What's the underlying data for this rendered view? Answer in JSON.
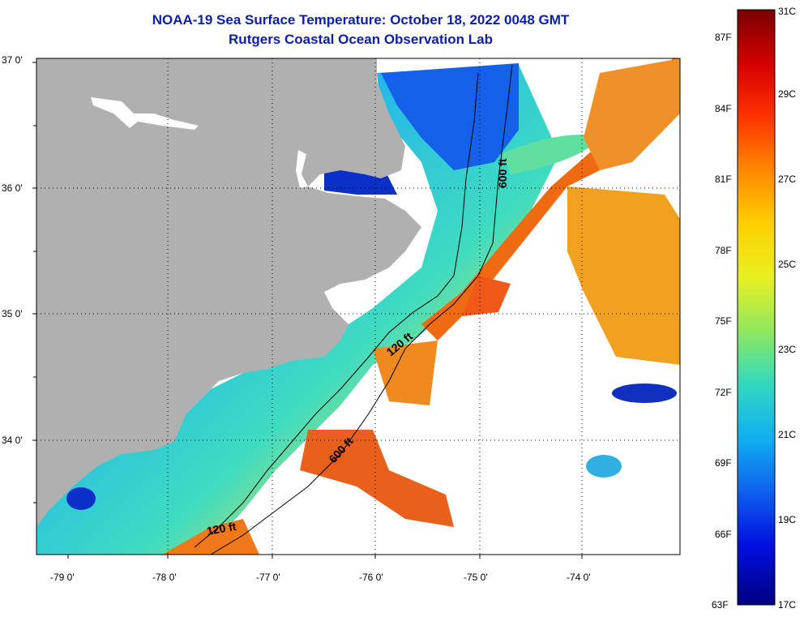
{
  "title": {
    "line1": "NOAA-19 Sea Surface Temperature:  October 18, 2022 0048 GMT",
    "line2": "Rutgers Coastal Ocean Observation Lab"
  },
  "map": {
    "lat_labels": [
      "37 0'",
      "36 0'",
      "35 0'",
      "34 0'"
    ],
    "lon_labels": [
      "-79 0'",
      "-78 0'",
      "-77 0'",
      "-76 0'",
      "-75 0'",
      "-74 0'"
    ],
    "contour_labels": [
      "600 ft",
      "120 ft",
      "600 ft",
      "120 ft"
    ],
    "colors": {
      "land": "#b0b0b0",
      "cloud": "#ffffff",
      "cold": "#0a2bd6",
      "cool": "#1fa3e8",
      "mid": "#39d9c6",
      "warm": "#e8e03a",
      "hot": "#f07a1a"
    }
  },
  "colorbar": {
    "fahrenheit_labels": [
      "87F",
      "84F",
      "81F",
      "78F",
      "75F",
      "72F",
      "69F",
      "66F",
      "63F"
    ],
    "celsius_labels": [
      "31C",
      "29C",
      "27C",
      "25C",
      "23C",
      "21C",
      "19C",
      "17C"
    ],
    "gradient": [
      "#7a0000",
      "#d40000",
      "#ff3300",
      "#ff8800",
      "#ffd000",
      "#e8f020",
      "#90e860",
      "#30d8c0",
      "#10b0f0",
      "#1060f0",
      "#0010e0",
      "#000080"
    ]
  }
}
